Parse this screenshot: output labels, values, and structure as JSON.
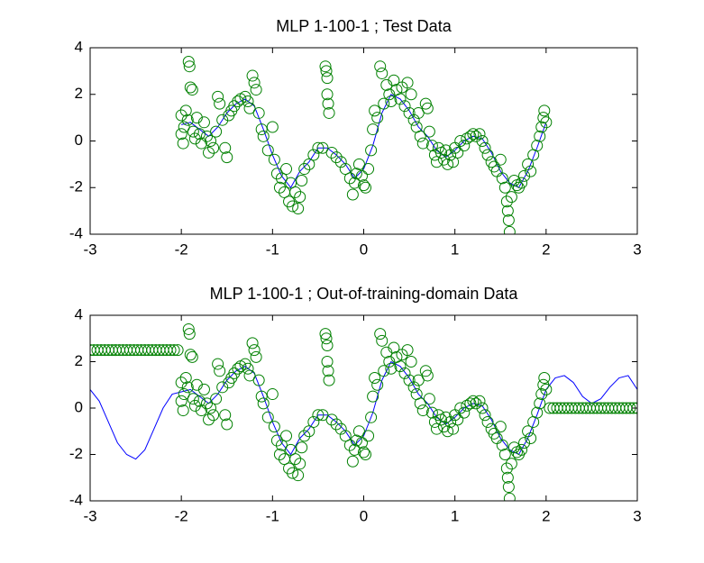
{
  "chart_data": [
    {
      "type": "scatter",
      "title": "MLP 1-100-1 ; Test Data",
      "xlim": [
        -3,
        3
      ],
      "ylim": [
        -4,
        4
      ],
      "xticks": [
        -3,
        -2,
        -1,
        0,
        1,
        2,
        3
      ],
      "yticks": [
        -4,
        -2,
        0,
        2,
        4
      ],
      "grid": false,
      "series": [
        {
          "style": "line",
          "color": "#0000ff",
          "x": [
            -2,
            -1.9,
            -1.8,
            -1.7,
            -1.6,
            -1.5,
            -1.4,
            -1.3,
            -1.2,
            -1.1,
            -1,
            -0.9,
            -0.8,
            -0.7,
            -0.6,
            -0.5,
            -0.4,
            -0.3,
            -0.2,
            -0.1,
            0,
            0.1,
            0.2,
            0.3,
            0.4,
            0.5,
            0.6,
            0.7,
            0.8,
            0.9,
            1,
            1.1,
            1.2,
            1.3,
            1.4,
            1.5,
            1.6,
            1.7,
            1.8,
            1.9,
            2
          ],
          "values": [
            0.7,
            0.8,
            0.5,
            0.2,
            0.6,
            1.2,
            1.6,
            1.8,
            1.5,
            0.5,
            -0.6,
            -1.5,
            -2,
            -1.3,
            -0.9,
            -0.3,
            -0.3,
            -0.6,
            -1,
            -1.6,
            -1.2,
            -0.2,
            1.2,
            2,
            1.8,
            1.3,
            0.6,
            0.2,
            -0.4,
            -0.7,
            -0.4,
            0,
            0.2,
            0.1,
            -0.5,
            -1.3,
            -1.8,
            -2,
            -1.3,
            -0.3,
            0.8
          ]
        },
        {
          "style": "markers",
          "color": "#008000",
          "x": [
            -2,
            -2,
            -1.98,
            -1.97,
            -1.95,
            -1.93,
            -1.92,
            -1.91,
            -1.9,
            -1.88,
            -1.87,
            -1.85,
            -1.83,
            -1.8,
            -1.78,
            -1.75,
            -1.72,
            -1.7,
            -1.68,
            -1.65,
            -1.62,
            -1.6,
            -1.58,
            -1.55,
            -1.52,
            -1.5,
            -1.48,
            -1.45,
            -1.42,
            -1.38,
            -1.35,
            -1.3,
            -1.27,
            -1.25,
            -1.22,
            -1.2,
            -1.18,
            -1.15,
            -1.12,
            -1.1,
            -1.05,
            -1,
            -0.98,
            -0.95,
            -0.92,
            -0.9,
            -0.87,
            -0.85,
            -0.82,
            -0.8,
            -0.78,
            -0.75,
            -0.72,
            -0.7,
            -0.68,
            -0.65,
            -0.6,
            -0.55,
            -0.5,
            -0.45,
            -0.42,
            -0.41,
            -0.4,
            -0.4,
            -0.39,
            -0.38,
            -0.35,
            -0.3,
            -0.25,
            -0.2,
            -0.15,
            -0.12,
            -0.1,
            -0.08,
            -0.05,
            -0.02,
            0,
            0.02,
            0.05,
            0.08,
            0.1,
            0.12,
            0.15,
            0.18,
            0.2,
            0.22,
            0.25,
            0.28,
            0.3,
            0.33,
            0.36,
            0.4,
            0.42,
            0.45,
            0.48,
            0.5,
            0.52,
            0.55,
            0.58,
            0.6,
            0.62,
            0.65,
            0.68,
            0.7,
            0.72,
            0.75,
            0.78,
            0.8,
            0.82,
            0.85,
            0.88,
            0.9,
            0.92,
            0.95,
            0.98,
            1,
            1.03,
            1.06,
            1.1,
            1.13,
            1.17,
            1.2,
            1.23,
            1.27,
            1.3,
            1.33,
            1.36,
            1.4,
            1.43,
            1.46,
            1.5,
            1.52,
            1.55,
            1.57,
            1.58,
            1.59,
            1.6,
            1.62,
            1.65,
            1.68,
            1.7,
            1.73,
            1.76,
            1.8,
            1.83,
            1.86,
            1.9,
            1.93,
            1.95,
            1.97,
            1.98,
            2
          ],
          "values": [
            1.1,
            0.3,
            -0.1,
            0.6,
            1.3,
            0.9,
            3.4,
            3.2,
            2.3,
            2.2,
            0.4,
            0.1,
            1,
            0.3,
            -0.1,
            0.8,
            0.2,
            -0.5,
            0,
            -0.3,
            0.4,
            1.9,
            1.6,
            0.9,
            -0.3,
            -0.7,
            1.1,
            1.3,
            1.5,
            1.7,
            1.8,
            1.9,
            1.7,
            1.4,
            2.8,
            2.5,
            2.2,
            1.2,
            0.5,
            0.2,
            -0.4,
            0.6,
            -0.8,
            -1.4,
            -2,
            -1.6,
            -2.2,
            -1.2,
            -2.6,
            -1.8,
            -2.8,
            -2.2,
            -2.9,
            -2.4,
            -1.7,
            -1.2,
            -1,
            -0.6,
            -0.3,
            -0.3,
            3.2,
            3,
            2.7,
            2,
            1.6,
            1.2,
            -0.5,
            -0.7,
            -0.9,
            -1.2,
            -1.6,
            -2.3,
            -1.8,
            -1.4,
            -1,
            -1.5,
            -1.9,
            -2,
            -1.2,
            -0.4,
            0.5,
            1.3,
            1,
            3.2,
            2.9,
            1.6,
            2.4,
            2,
            1.7,
            2.6,
            2.2,
            1.8,
            2.3,
            1.5,
            2.5,
            1.2,
            2,
            0.9,
            0.6,
            1.2,
            0.2,
            -0.1,
            1.6,
            1.4,
            0.4,
            -0.2,
            -0.6,
            -0.9,
            -0.3,
            -0.5,
            -0.8,
            -0.4,
            -1,
            -0.6,
            -0.9,
            -0.3,
            -0.5,
            0,
            -0.2,
            0.1,
            0.2,
            0.3,
            0.2,
            0.3,
            0,
            -0.3,
            -0.6,
            -0.9,
            -1.1,
            -1.3,
            -0.8,
            -1.6,
            -2,
            -2.6,
            -3,
            -3.4,
            -3.9,
            -2.4,
            -1.7,
            -1.9,
            -2,
            -1.8,
            -1.5,
            -1,
            -1.3,
            -0.6,
            -0.2,
            0.2,
            0.6,
            1,
            1.3,
            0.8
          ]
        }
      ]
    },
    {
      "type": "scatter",
      "title": "MLP 1-100-1 ; Out-of-training-domain Data",
      "xlim": [
        -3,
        3
      ],
      "ylim": [
        -4,
        4
      ],
      "xticks": [
        -3,
        -2,
        -1,
        0,
        1,
        2,
        3
      ],
      "yticks": [
        -4,
        -2,
        0,
        2,
        4
      ],
      "grid": false,
      "series": [
        {
          "style": "line",
          "color": "#0000ff",
          "x": [
            -3,
            -2.9,
            -2.8,
            -2.7,
            -2.6,
            -2.5,
            -2.4,
            -2.3,
            -2.2,
            -2.1,
            -2,
            -1.9,
            -1.8,
            -1.7,
            -1.6,
            -1.5,
            -1.4,
            -1.3,
            -1.2,
            -1.1,
            -1,
            -0.9,
            -0.8,
            -0.7,
            -0.6,
            -0.5,
            -0.4,
            -0.3,
            -0.2,
            -0.1,
            0,
            0.1,
            0.2,
            0.3,
            0.4,
            0.5,
            0.6,
            0.7,
            0.8,
            0.9,
            1,
            1.1,
            1.2,
            1.3,
            1.4,
            1.5,
            1.6,
            1.7,
            1.8,
            1.9,
            2,
            2.1,
            2.2,
            2.3,
            2.4,
            2.5,
            2.6,
            2.7,
            2.8,
            2.9,
            3
          ],
          "values": [
            0.8,
            0.3,
            -0.6,
            -1.5,
            -2,
            -2.2,
            -1.8,
            -0.9,
            0,
            0.6,
            0.7,
            0.8,
            0.5,
            0.2,
            0.6,
            1.2,
            1.6,
            1.8,
            1.5,
            0.5,
            -0.6,
            -1.5,
            -2,
            -1.3,
            -0.9,
            -0.3,
            -0.3,
            -0.6,
            -1,
            -1.6,
            -1.2,
            -0.2,
            1.2,
            2,
            1.8,
            1.3,
            0.6,
            0.2,
            -0.4,
            -0.7,
            -0.4,
            0,
            0.2,
            0.1,
            -0.5,
            -1.3,
            -1.8,
            -2,
            -1.3,
            -0.3,
            0.8,
            1.3,
            1.4,
            1.1,
            0.5,
            0.2,
            0.4,
            0.9,
            1.3,
            1.4,
            0.8
          ]
        },
        {
          "style": "markers",
          "color": "#008000",
          "x": [
            -2,
            -2,
            -1.98,
            -1.97,
            -1.95,
            -1.93,
            -1.92,
            -1.91,
            -1.9,
            -1.88,
            -1.87,
            -1.85,
            -1.83,
            -1.8,
            -1.78,
            -1.75,
            -1.72,
            -1.7,
            -1.68,
            -1.65,
            -1.62,
            -1.6,
            -1.58,
            -1.55,
            -1.52,
            -1.5,
            -1.48,
            -1.45,
            -1.42,
            -1.38,
            -1.35,
            -1.3,
            -1.27,
            -1.25,
            -1.22,
            -1.2,
            -1.18,
            -1.15,
            -1.12,
            -1.1,
            -1.05,
            -1,
            -0.98,
            -0.95,
            -0.92,
            -0.9,
            -0.87,
            -0.85,
            -0.82,
            -0.8,
            -0.78,
            -0.75,
            -0.72,
            -0.7,
            -0.68,
            -0.65,
            -0.6,
            -0.55,
            -0.5,
            -0.45,
            -0.42,
            -0.41,
            -0.4,
            -0.4,
            -0.39,
            -0.38,
            -0.35,
            -0.3,
            -0.25,
            -0.2,
            -0.15,
            -0.12,
            -0.1,
            -0.08,
            -0.05,
            -0.02,
            0,
            0.02,
            0.05,
            0.08,
            0.1,
            0.12,
            0.15,
            0.18,
            0.2,
            0.22,
            0.25,
            0.28,
            0.3,
            0.33,
            0.36,
            0.4,
            0.42,
            0.45,
            0.48,
            0.5,
            0.52,
            0.55,
            0.58,
            0.6,
            0.62,
            0.65,
            0.68,
            0.7,
            0.72,
            0.75,
            0.78,
            0.8,
            0.82,
            0.85,
            0.88,
            0.9,
            0.92,
            0.95,
            0.98,
            1,
            1.03,
            1.06,
            1.1,
            1.13,
            1.17,
            1.2,
            1.23,
            1.27,
            1.3,
            1.33,
            1.36,
            1.4,
            1.43,
            1.46,
            1.5,
            1.52,
            1.55,
            1.57,
            1.58,
            1.59,
            1.6,
            1.62,
            1.65,
            1.68,
            1.7,
            1.73,
            1.76,
            1.8,
            1.83,
            1.86,
            1.9,
            1.93,
            1.95,
            1.97,
            1.98,
            2
          ],
          "values": [
            1.1,
            0.3,
            -0.1,
            0.6,
            1.3,
            0.9,
            3.4,
            3.2,
            2.3,
            2.2,
            0.4,
            0.1,
            1,
            0.3,
            -0.1,
            0.8,
            0.2,
            -0.5,
            0,
            -0.3,
            0.4,
            1.9,
            1.6,
            0.9,
            -0.3,
            -0.7,
            1.1,
            1.3,
            1.5,
            1.7,
            1.8,
            1.9,
            1.7,
            1.4,
            2.8,
            2.5,
            2.2,
            1.2,
            0.5,
            0.2,
            -0.4,
            0.6,
            -0.8,
            -1.4,
            -2,
            -1.6,
            -2.2,
            -1.2,
            -2.6,
            -1.8,
            -2.8,
            -2.2,
            -2.9,
            -2.4,
            -1.7,
            -1.2,
            -1,
            -0.6,
            -0.3,
            -0.3,
            3.2,
            3,
            2.7,
            2,
            1.6,
            1.2,
            -0.5,
            -0.7,
            -0.9,
            -1.2,
            -1.6,
            -2.3,
            -1.8,
            -1.4,
            -1,
            -1.5,
            -1.9,
            -2,
            -1.2,
            -0.4,
            0.5,
            1.3,
            1,
            3.2,
            2.9,
            1.6,
            2.4,
            2,
            1.7,
            2.6,
            2.2,
            1.8,
            2.3,
            1.5,
            2.5,
            1.2,
            2,
            0.9,
            0.6,
            1.2,
            0.2,
            -0.1,
            1.6,
            1.4,
            0.4,
            -0.2,
            -0.6,
            -0.9,
            -0.3,
            -0.5,
            -0.8,
            -0.4,
            -1,
            -0.6,
            -0.9,
            -0.3,
            -0.5,
            0,
            -0.2,
            0.1,
            0.2,
            0.3,
            0.2,
            0.3,
            0,
            -0.3,
            -0.6,
            -0.9,
            -1.1,
            -1.3,
            -0.8,
            -1.6,
            -2,
            -2.6,
            -3,
            -3.4,
            -3.9,
            -2.4,
            -1.7,
            -1.9,
            -2,
            -1.8,
            -1.5,
            -1,
            -1.3,
            -0.6,
            -0.2,
            0.2,
            0.6,
            1,
            1.3,
            0.8
          ]
        },
        {
          "style": "markers",
          "color": "#008000",
          "x": [
            -3,
            -2.96,
            -2.92,
            -2.88,
            -2.84,
            -2.8,
            -2.76,
            -2.72,
            -2.68,
            -2.64,
            -2.6,
            -2.56,
            -2.52,
            -2.48,
            -2.44,
            -2.4,
            -2.36,
            -2.32,
            -2.28,
            -2.24,
            -2.2,
            -2.16,
            -2.12,
            -2.08,
            -2.04,
            2.04,
            2.08,
            2.12,
            2.16,
            2.2,
            2.24,
            2.28,
            2.32,
            2.36,
            2.4,
            2.44,
            2.48,
            2.52,
            2.56,
            2.6,
            2.64,
            2.68,
            2.72,
            2.76,
            2.8,
            2.84,
            2.88,
            2.92,
            2.96,
            3
          ],
          "values": [
            2.5,
            2.5,
            2.5,
            2.5,
            2.5,
            2.5,
            2.5,
            2.5,
            2.5,
            2.5,
            2.5,
            2.5,
            2.5,
            2.5,
            2.5,
            2.5,
            2.5,
            2.5,
            2.5,
            2.5,
            2.5,
            2.5,
            2.5,
            2.5,
            2.5,
            0,
            0,
            0,
            0,
            0,
            0,
            0,
            0,
            0,
            0,
            0,
            0,
            0,
            0,
            0,
            0,
            0,
            0,
            0,
            0,
            0,
            0,
            0,
            0,
            0
          ]
        }
      ]
    }
  ]
}
